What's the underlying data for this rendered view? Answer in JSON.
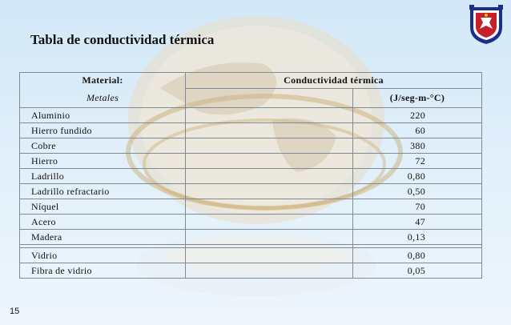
{
  "slide": {
    "title": "Tabla de conductividad térmica",
    "number": "15"
  },
  "table": {
    "header": {
      "col1_label": "Material:",
      "col1_sub": "Metales",
      "col2_label": "Conductividad térmica",
      "col2_unit": "(J/seg-m-°C)"
    },
    "rows": [
      {
        "material": "Aluminio",
        "value": "220"
      },
      {
        "material": "Hierro fundido",
        "value": "60"
      },
      {
        "material": "Cobre",
        "value": "380"
      },
      {
        "material": "Hierro",
        "value": "72"
      },
      {
        "material": "Ladrillo",
        "value": "0,80"
      },
      {
        "material": "Ladrillo refractario",
        "value": "0,50"
      },
      {
        "material": "Níquel",
        "value": "70"
      },
      {
        "material": "Acero",
        "value": "47"
      },
      {
        "material": "Madera",
        "value": "0,13"
      },
      {
        "material": "Vidrio",
        "value": "0,80"
      },
      {
        "material": "Fibra de vidrio",
        "value": "0,05"
      }
    ]
  },
  "colors": {
    "background": "#d3e8f8",
    "logo_blue": "#1b2f8a",
    "logo_red": "#c8202a"
  }
}
